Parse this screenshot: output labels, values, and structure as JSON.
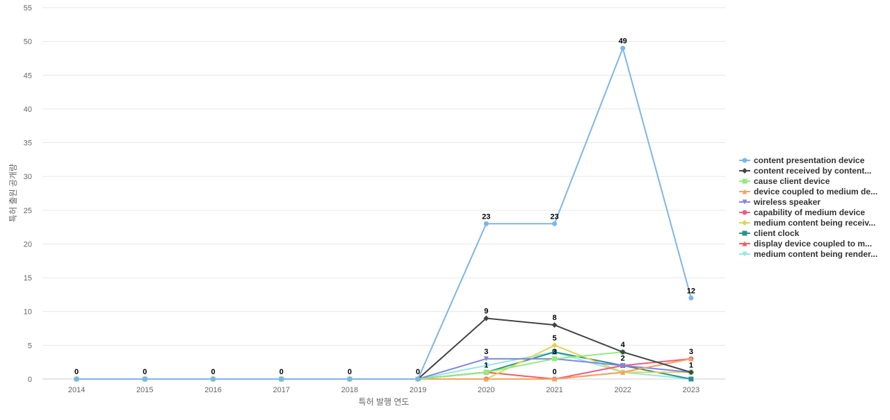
{
  "chart_data": {
    "type": "line",
    "title": "",
    "xlabel": "특허 발행 연도",
    "ylabel": "특허 출원 공개량",
    "x": [
      "2014",
      "2015",
      "2016",
      "2017",
      "2018",
      "2019",
      "2020",
      "2021",
      "2022",
      "2023"
    ],
    "ylim": [
      0,
      55
    ],
    "yticks": [
      0,
      5,
      10,
      15,
      20,
      25,
      30,
      35,
      40,
      45,
      50,
      55
    ],
    "grid": true,
    "legend_position": "right",
    "series": [
      {
        "name": "content presentation device",
        "color": "#7cb5ec",
        "marker": "circle",
        "values": [
          0,
          0,
          0,
          0,
          0,
          0,
          23,
          23,
          49,
          12
        ]
      },
      {
        "name": "content received by content...",
        "color": "#434348",
        "marker": "diamond",
        "values": [
          0,
          0,
          0,
          0,
          0,
          0,
          9,
          8,
          4,
          1
        ]
      },
      {
        "name": "cause client device",
        "color": "#90ed7d",
        "marker": "square",
        "values": [
          0,
          0,
          0,
          0,
          0,
          0,
          1,
          3,
          4,
          1
        ]
      },
      {
        "name": "device coupled to medium de...",
        "color": "#f7a35c",
        "marker": "triangle",
        "values": [
          0,
          0,
          0,
          0,
          0,
          0,
          0,
          0,
          1,
          3
        ]
      },
      {
        "name": "wireless speaker",
        "color": "#8085e9",
        "marker": "triangle-down",
        "values": [
          0,
          0,
          0,
          0,
          0,
          0,
          3,
          3,
          2,
          1
        ]
      },
      {
        "name": "capability of medium device",
        "color": "#f15c80",
        "marker": "circle",
        "values": [
          0,
          0,
          0,
          0,
          0,
          0,
          0,
          0,
          2,
          3
        ]
      },
      {
        "name": "medium content being receiv...",
        "color": "#e4d354",
        "marker": "diamond",
        "values": [
          0,
          0,
          0,
          0,
          0,
          0,
          0,
          5,
          1,
          1
        ]
      },
      {
        "name": "client clock",
        "color": "#2b908f",
        "marker": "square",
        "values": [
          0,
          0,
          0,
          0,
          0,
          0,
          1,
          4,
          2,
          0
        ]
      },
      {
        "name": "display device coupled to m...",
        "color": "#f45b5b",
        "marker": "triangle",
        "values": [
          0,
          0,
          0,
          0,
          0,
          0,
          1,
          0,
          1,
          3
        ]
      },
      {
        "name": "medium content being render...",
        "color": "#91e8e1",
        "marker": "triangle-down",
        "values": [
          0,
          0,
          0,
          0,
          0,
          0,
          2,
          4,
          1,
          0
        ]
      }
    ],
    "data_labels": [
      {
        "x": "2014",
        "text": "0"
      },
      {
        "x": "2015",
        "text": "0"
      },
      {
        "x": "2016",
        "text": "0"
      },
      {
        "x": "2017",
        "text": "0"
      },
      {
        "x": "2018",
        "text": "0"
      },
      {
        "x": "2019",
        "text": "0"
      },
      {
        "x": "2020",
        "text": "23",
        "y": 23
      },
      {
        "x": "2020",
        "text": "9",
        "y": 9
      },
      {
        "x": "2020",
        "text": "3",
        "y": 3
      },
      {
        "x": "2020",
        "text": "1",
        "y": 1
      },
      {
        "x": "2021",
        "text": "23",
        "y": 23
      },
      {
        "x": "2021",
        "text": "8",
        "y": 8
      },
      {
        "x": "2021",
        "text": "5",
        "y": 5
      },
      {
        "x": "2021",
        "text": "3",
        "y": 3
      },
      {
        "x": "2021",
        "text": "0",
        "y": 0
      },
      {
        "x": "2022",
        "text": "49",
        "y": 49
      },
      {
        "x": "2022",
        "text": "4",
        "y": 4
      },
      {
        "x": "2022",
        "text": "2",
        "y": 2
      },
      {
        "x": "2023",
        "text": "12",
        "y": 12
      },
      {
        "x": "2023",
        "text": "3",
        "y": 3
      },
      {
        "x": "2023",
        "text": "1",
        "y": 1
      }
    ]
  }
}
